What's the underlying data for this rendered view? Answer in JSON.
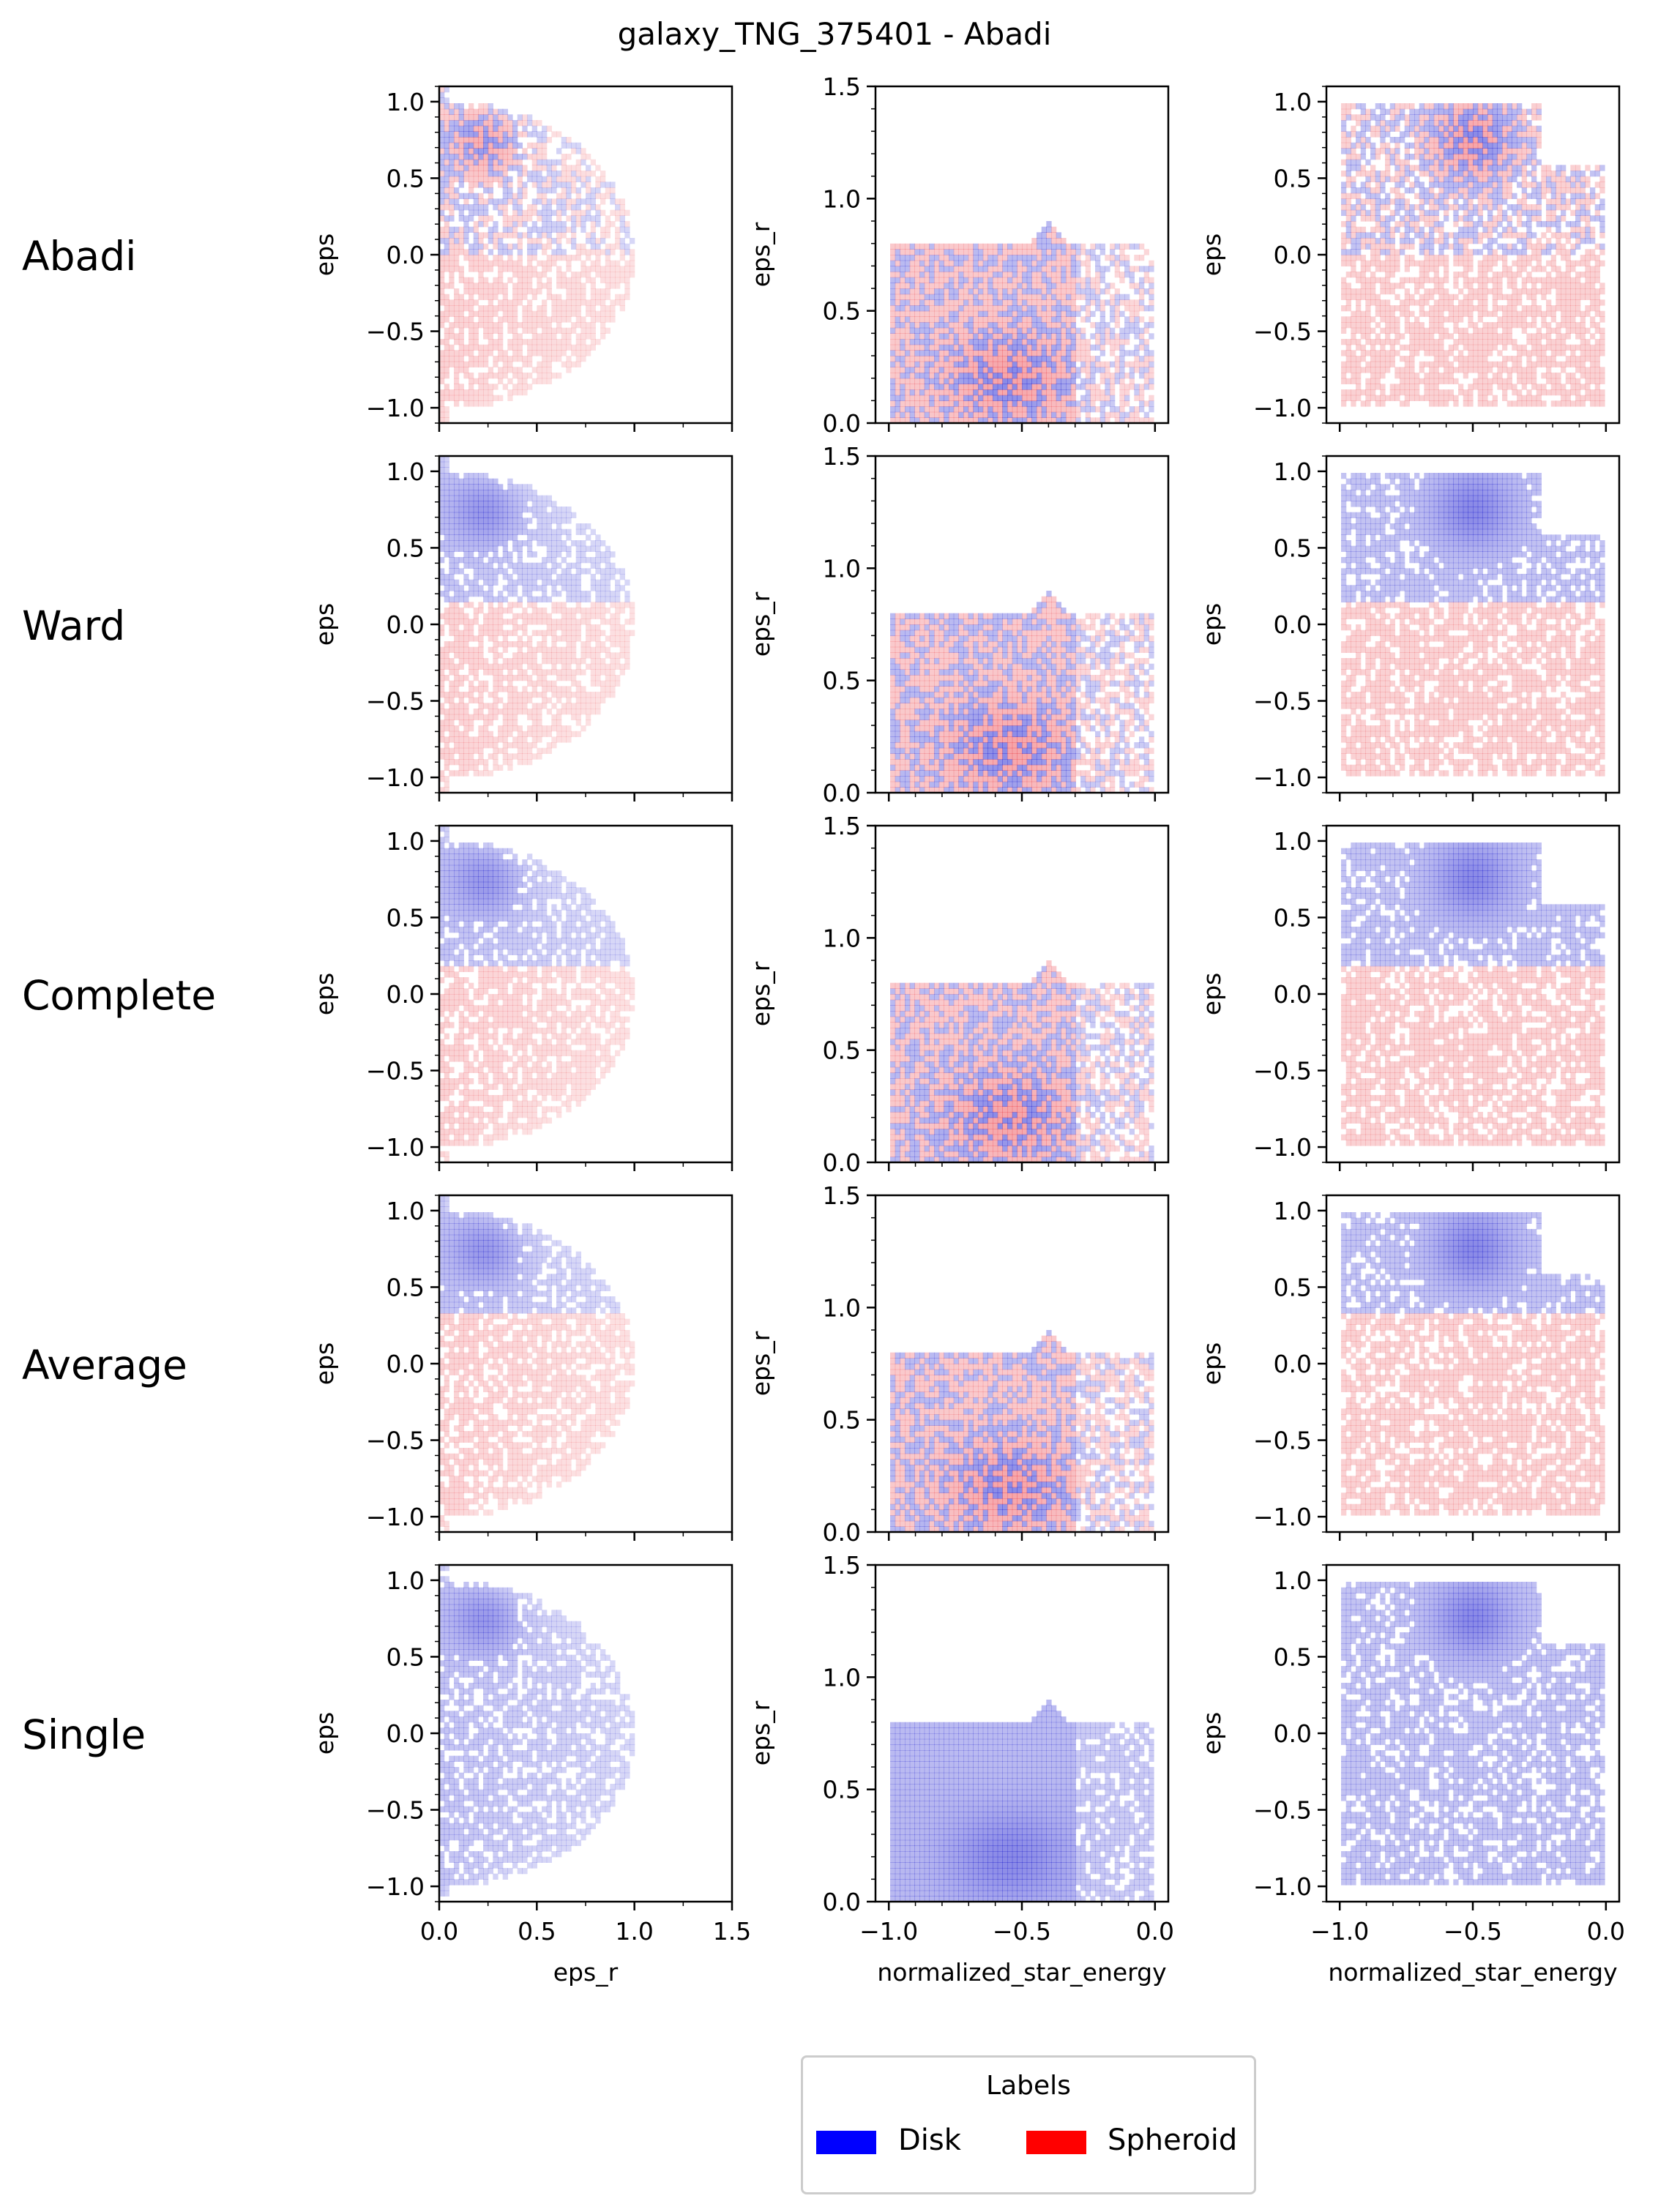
{
  "title": "galaxy_TNG_375401 - Abadi",
  "rows": [
    "Abadi",
    "Ward",
    "Complete",
    "Average",
    "Single"
  ],
  "legend": {
    "title": "Labels",
    "entries": [
      {
        "label": "Disk",
        "color": "#0000ff"
      },
      {
        "label": "Spheroid",
        "color": "#ff0000"
      }
    ]
  },
  "chart_data": {
    "type": "heatmap",
    "description_of_grid": "5 rows (clustering methods) x 3 columns (2D histograms of star particles colored by label)",
    "columns": [
      {
        "x": "eps_r",
        "y": "eps",
        "xlim": [
          0,
          1.5
        ],
        "ylim": [
          -1.1,
          1.1
        ],
        "xticks": [
          0.0,
          0.5,
          1.0,
          1.5
        ],
        "yticks": [
          -1.0,
          -0.5,
          0.0,
          0.5,
          1.0
        ],
        "xlabel": "eps_r",
        "ylabel": "eps"
      },
      {
        "x": "normalized_star_energy",
        "y": "eps_r",
        "xlim": [
          -1.05,
          0.05
        ],
        "ylim": [
          0,
          1.5
        ],
        "xticks": [
          -1.0,
          -0.5,
          0.0
        ],
        "yticks": [
          0.0,
          0.5,
          1.0,
          1.5
        ],
        "xlabel": "normalized_star_energy",
        "ylabel": "eps_r"
      },
      {
        "x": "normalized_star_energy",
        "y": "eps",
        "xlim": [
          -1.05,
          0.05
        ],
        "ylim": [
          -1.1,
          1.1
        ],
        "xticks": [
          -1.0,
          -0.5,
          0.0
        ],
        "yticks": [
          -1.0,
          -0.5,
          0.0,
          0.5,
          1.0
        ],
        "xlabel": "normalized_star_energy",
        "ylabel": "eps"
      }
    ],
    "tick_labels": {
      "eps": [
        "−1.0",
        "−0.5",
        "0.0",
        "0.5",
        "1.0"
      ],
      "eps_r_y": [
        "0.0",
        "0.5",
        "1.0",
        "1.5"
      ],
      "eps_r_x": [
        "0.0",
        "0.5",
        "1.0",
        "1.5"
      ],
      "energy": [
        "−1.0",
        "−0.5",
        "0.0"
      ]
    },
    "panels": [
      {
        "method": "Abadi",
        "eps_split": 0.0,
        "disk_region": "upper_mixed"
      },
      {
        "method": "Ward",
        "eps_split": 0.16,
        "disk_region": "upper"
      },
      {
        "method": "Complete",
        "eps_split": 0.2,
        "disk_region": "upper"
      },
      {
        "method": "Average",
        "eps_split": 0.32,
        "disk_region": "upper"
      },
      {
        "method": "Single",
        "eps_split": null,
        "disk_region": "all"
      }
    ]
  }
}
